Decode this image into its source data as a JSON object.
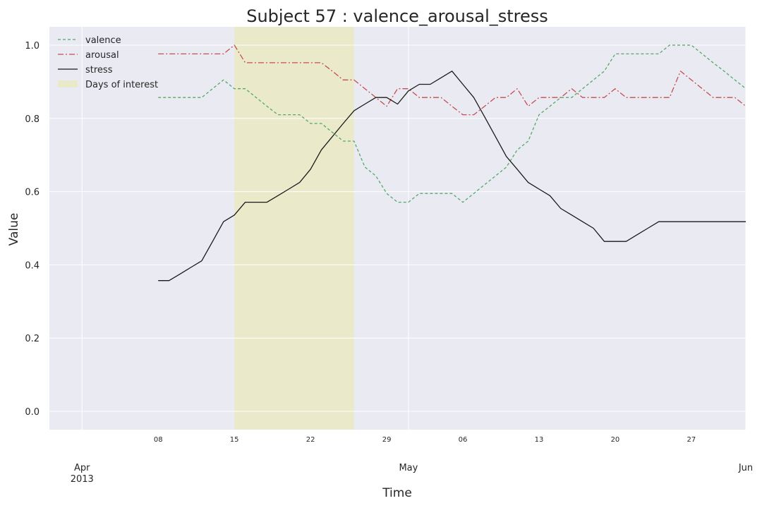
{
  "chart_data": {
    "type": "line",
    "title": "Subject 57 : valence_arousal_stress",
    "xlabel": "Time",
    "ylabel": "Value",
    "xlim": [
      "2013-03-29",
      "2013-06-01"
    ],
    "ylim": [
      -0.05,
      1.05
    ],
    "grid": true,
    "legend": {
      "placement": "top-left"
    },
    "y_ticks": [
      "0.0",
      "0.2",
      "0.4",
      "0.6",
      "0.8",
      "1.0"
    ],
    "x_minor_ticks": [
      {
        "date": "2013-04-08",
        "label": "08"
      },
      {
        "date": "2013-04-15",
        "label": "15"
      },
      {
        "date": "2013-04-22",
        "label": "22"
      },
      {
        "date": "2013-04-29",
        "label": "29"
      },
      {
        "date": "2013-05-06",
        "label": "06"
      },
      {
        "date": "2013-05-13",
        "label": "13"
      },
      {
        "date": "2013-05-20",
        "label": "20"
      },
      {
        "date": "2013-05-27",
        "label": "27"
      }
    ],
    "x_major_ticks": [
      {
        "date": "2013-04-01",
        "label": "Apr",
        "sublabel": "2013"
      },
      {
        "date": "2013-05-01",
        "label": "May",
        "sublabel": ""
      },
      {
        "date": "2013-06-01",
        "label": "Jun",
        "sublabel": ""
      }
    ],
    "highlight": {
      "label": "Days of interest",
      "start": "2013-04-15",
      "end": "2013-04-26",
      "color": "#eaeacb"
    },
    "x": [
      "2013-04-08",
      "2013-04-09",
      "2013-04-10",
      "2013-04-11",
      "2013-04-12",
      "2013-04-13",
      "2013-04-14",
      "2013-04-15",
      "2013-04-16",
      "2013-04-17",
      "2013-04-18",
      "2013-04-19",
      "2013-04-20",
      "2013-04-21",
      "2013-04-22",
      "2013-04-23",
      "2013-04-24",
      "2013-04-25",
      "2013-04-26",
      "2013-04-27",
      "2013-04-28",
      "2013-04-29",
      "2013-04-30",
      "2013-05-01",
      "2013-05-02",
      "2013-05-03",
      "2013-05-04",
      "2013-05-05",
      "2013-05-06",
      "2013-05-07",
      "2013-05-08",
      "2013-05-09",
      "2013-05-10",
      "2013-05-11",
      "2013-05-12",
      "2013-05-13",
      "2013-05-14",
      "2013-05-15",
      "2013-05-16",
      "2013-05-17",
      "2013-05-18",
      "2013-05-19",
      "2013-05-20",
      "2013-05-21",
      "2013-05-22",
      "2013-05-23",
      "2013-05-24",
      "2013-05-25",
      "2013-05-26",
      "2013-05-27",
      "2013-05-28",
      "2013-05-29",
      "2013-05-30",
      "2013-05-31",
      "2013-06-01"
    ],
    "series": [
      {
        "name": "valence",
        "color": "#55a868",
        "dash": "dashed",
        "values": [
          0.857,
          0.857,
          0.857,
          0.857,
          0.857,
          0.881,
          0.905,
          0.881,
          0.881,
          0.857,
          0.833,
          0.81,
          0.81,
          0.81,
          0.786,
          0.786,
          0.762,
          0.738,
          0.738,
          0.667,
          0.643,
          0.595,
          0.571,
          0.571,
          0.595,
          0.595,
          0.595,
          0.595,
          0.571,
          0.595,
          0.619,
          0.643,
          0.667,
          0.714,
          0.738,
          0.81,
          0.833,
          0.857,
          0.857,
          0.881,
          0.905,
          0.929,
          0.976,
          0.976,
          0.976,
          0.976,
          0.976,
          1.0,
          1.0,
          1.0,
          0.976,
          0.952,
          0.929,
          0.905,
          0.881
        ]
      },
      {
        "name": "arousal",
        "color": "#c44e52",
        "dash": "dashdot",
        "values": [
          0.976,
          0.976,
          0.976,
          0.976,
          0.976,
          0.976,
          0.976,
          1.0,
          0.952,
          0.952,
          0.952,
          0.952,
          0.952,
          0.952,
          0.952,
          0.952,
          0.929,
          0.905,
          0.905,
          0.881,
          0.857,
          0.833,
          0.881,
          0.881,
          0.857,
          0.857,
          0.857,
          0.833,
          0.81,
          0.81,
          0.833,
          0.857,
          0.857,
          0.881,
          0.833,
          0.857,
          0.857,
          0.857,
          0.881,
          0.857,
          0.857,
          0.857,
          0.881,
          0.857,
          0.857,
          0.857,
          0.857,
          0.857,
          0.929,
          0.905,
          0.881,
          0.857,
          0.857,
          0.857,
          0.833
        ]
      },
      {
        "name": "stress",
        "color": "#1a1a1a",
        "dash": "solid",
        "values": [
          0.357,
          0.357,
          0.375,
          0.393,
          0.411,
          0.464,
          0.518,
          0.536,
          0.571,
          0.571,
          0.571,
          0.589,
          0.607,
          0.625,
          0.661,
          0.714,
          0.75,
          0.786,
          0.821,
          0.839,
          0.857,
          0.857,
          0.839,
          0.875,
          0.893,
          0.893,
          0.911,
          0.929,
          0.893,
          0.857,
          0.804,
          0.75,
          0.696,
          0.661,
          0.625,
          0.607,
          0.589,
          0.554,
          0.536,
          0.518,
          0.5,
          0.464,
          0.464,
          0.464,
          0.482,
          0.5,
          0.518,
          0.518,
          0.518,
          0.518,
          0.518,
          0.518,
          0.518,
          0.518,
          0.518
        ]
      }
    ]
  }
}
